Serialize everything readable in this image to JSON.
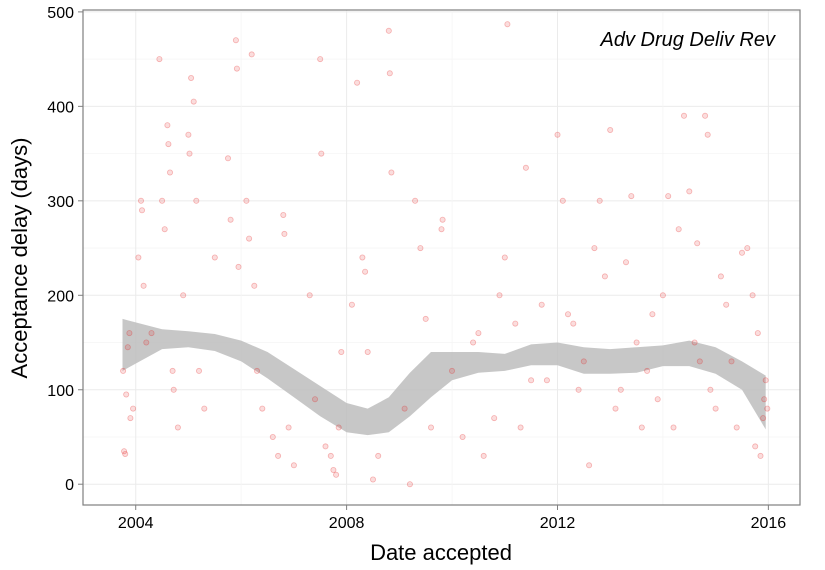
{
  "chart_data": {
    "type": "scatter",
    "title": "Adv Drug Deliv Rev",
    "xlabel": "Date accepted",
    "ylabel": "Acceptance delay (days)",
    "xlim": [
      2003.0,
      2016.6
    ],
    "ylim": [
      -22,
      502
    ],
    "x_ticks": [
      2004,
      2008,
      2012,
      2016
    ],
    "x_tick_labels": [
      "2004",
      "2008",
      "2012",
      "2016"
    ],
    "y_ticks": [
      0,
      100,
      200,
      300,
      400,
      500
    ],
    "y_tick_labels": [
      "0",
      "100",
      "200",
      "300",
      "400",
      "500"
    ],
    "grid": true,
    "legend": "none",
    "colors": {
      "points": "#e31a1c",
      "smooth_band": "#bdbdbd",
      "panel_border": "#7f7f7f",
      "grid": "#ebebeb"
    },
    "series": [
      {
        "points": [
          [
            2003.78,
            35
          ],
          [
            2003.8,
            32
          ],
          [
            2003.82,
            95
          ],
          [
            2003.85,
            145
          ],
          [
            2003.9,
            70
          ],
          [
            2003.76,
            120
          ],
          [
            2003.88,
            160
          ],
          [
            2003.95,
            80
          ],
          [
            2004.05,
            240
          ],
          [
            2004.1,
            300
          ],
          [
            2004.15,
            210
          ],
          [
            2004.12,
            290
          ],
          [
            2004.2,
            150
          ],
          [
            2004.3,
            160
          ],
          [
            2004.45,
            450
          ],
          [
            2004.5,
            300
          ],
          [
            2004.55,
            270
          ],
          [
            2004.6,
            380
          ],
          [
            2004.62,
            360
          ],
          [
            2004.65,
            330
          ],
          [
            2004.7,
            120
          ],
          [
            2004.72,
            100
          ],
          [
            2004.8,
            60
          ],
          [
            2004.9,
            200
          ],
          [
            2005.05,
            430
          ],
          [
            2005.1,
            405
          ],
          [
            2005.0,
            370
          ],
          [
            2005.02,
            350
          ],
          [
            2005.15,
            300
          ],
          [
            2005.2,
            120
          ],
          [
            2005.3,
            80
          ],
          [
            2005.5,
            240
          ],
          [
            2005.75,
            345
          ],
          [
            2005.8,
            280
          ],
          [
            2005.9,
            470
          ],
          [
            2005.92,
            440
          ],
          [
            2005.95,
            230
          ],
          [
            2006.1,
            300
          ],
          [
            2006.15,
            260
          ],
          [
            2006.2,
            455
          ],
          [
            2006.25,
            210
          ],
          [
            2006.3,
            120
          ],
          [
            2006.4,
            80
          ],
          [
            2006.6,
            50
          ],
          [
            2006.7,
            30
          ],
          [
            2006.8,
            285
          ],
          [
            2006.82,
            265
          ],
          [
            2006.9,
            60
          ],
          [
            2007.0,
            20
          ],
          [
            2007.3,
            200
          ],
          [
            2007.4,
            90
          ],
          [
            2007.5,
            450
          ],
          [
            2007.52,
            350
          ],
          [
            2007.6,
            40
          ],
          [
            2007.7,
            30
          ],
          [
            2007.75,
            15
          ],
          [
            2007.8,
            10
          ],
          [
            2007.85,
            60
          ],
          [
            2007.9,
            140
          ],
          [
            2008.1,
            190
          ],
          [
            2008.2,
            425
          ],
          [
            2008.3,
            240
          ],
          [
            2008.35,
            225
          ],
          [
            2008.4,
            140
          ],
          [
            2008.5,
            5
          ],
          [
            2008.6,
            30
          ],
          [
            2008.8,
            480
          ],
          [
            2008.82,
            435
          ],
          [
            2008.85,
            330
          ],
          [
            2009.1,
            80
          ],
          [
            2009.2,
            0
          ],
          [
            2009.3,
            300
          ],
          [
            2009.4,
            250
          ],
          [
            2009.5,
            175
          ],
          [
            2009.6,
            60
          ],
          [
            2009.8,
            270
          ],
          [
            2009.82,
            280
          ],
          [
            2010.0,
            120
          ],
          [
            2010.2,
            50
          ],
          [
            2010.4,
            150
          ],
          [
            2010.5,
            160
          ],
          [
            2010.6,
            30
          ],
          [
            2010.8,
            70
          ],
          [
            2010.9,
            200
          ],
          [
            2011.0,
            240
          ],
          [
            2011.05,
            487
          ],
          [
            2011.2,
            170
          ],
          [
            2011.3,
            60
          ],
          [
            2011.4,
            335
          ],
          [
            2011.5,
            110
          ],
          [
            2011.7,
            190
          ],
          [
            2011.8,
            110
          ],
          [
            2012.0,
            370
          ],
          [
            2012.1,
            300
          ],
          [
            2012.2,
            180
          ],
          [
            2012.3,
            170
          ],
          [
            2012.4,
            100
          ],
          [
            2012.5,
            130
          ],
          [
            2012.6,
            20
          ],
          [
            2012.7,
            250
          ],
          [
            2012.8,
            300
          ],
          [
            2012.9,
            220
          ],
          [
            2013.0,
            375
          ],
          [
            2013.1,
            80
          ],
          [
            2013.2,
            100
          ],
          [
            2013.3,
            235
          ],
          [
            2013.4,
            305
          ],
          [
            2013.5,
            150
          ],
          [
            2013.6,
            60
          ],
          [
            2013.7,
            120
          ],
          [
            2013.8,
            180
          ],
          [
            2013.9,
            90
          ],
          [
            2014.0,
            200
          ],
          [
            2014.1,
            305
          ],
          [
            2014.2,
            60
          ],
          [
            2014.3,
            270
          ],
          [
            2014.4,
            390
          ],
          [
            2014.5,
            310
          ],
          [
            2014.6,
            150
          ],
          [
            2014.65,
            255
          ],
          [
            2014.7,
            130
          ],
          [
            2014.8,
            390
          ],
          [
            2014.85,
            370
          ],
          [
            2014.9,
            100
          ],
          [
            2015.0,
            80
          ],
          [
            2015.1,
            220
          ],
          [
            2015.2,
            190
          ],
          [
            2015.3,
            130
          ],
          [
            2015.4,
            60
          ],
          [
            2015.5,
            245
          ],
          [
            2015.6,
            250
          ],
          [
            2015.7,
            200
          ],
          [
            2015.75,
            40
          ],
          [
            2015.8,
            160
          ],
          [
            2015.85,
            30
          ],
          [
            2015.9,
            70
          ],
          [
            2015.92,
            90
          ],
          [
            2015.95,
            110
          ],
          [
            2015.98,
            80
          ]
        ]
      }
    ],
    "smooth_band": {
      "x": [
        2003.75,
        2004.5,
        2005.0,
        2005.5,
        2006.0,
        2006.5,
        2007.0,
        2007.5,
        2008.0,
        2008.4,
        2008.8,
        2009.2,
        2009.6,
        2010.0,
        2010.5,
        2011.0,
        2011.5,
        2012.0,
        2012.5,
        2013.0,
        2013.5,
        2014.0,
        2014.5,
        2015.0,
        2015.5,
        2015.95
      ],
      "upper": [
        175,
        164,
        162,
        159,
        152,
        140,
        122,
        104,
        86,
        80,
        92,
        118,
        140,
        140,
        140,
        138,
        148,
        150,
        145,
        143,
        145,
        147,
        152,
        145,
        130,
        115
      ],
      "lower": [
        120,
        143,
        145,
        141,
        130,
        112,
        92,
        72,
        55,
        52,
        55,
        72,
        92,
        110,
        118,
        120,
        126,
        126,
        117,
        117,
        118,
        125,
        125,
        117,
        100,
        58
      ]
    }
  }
}
